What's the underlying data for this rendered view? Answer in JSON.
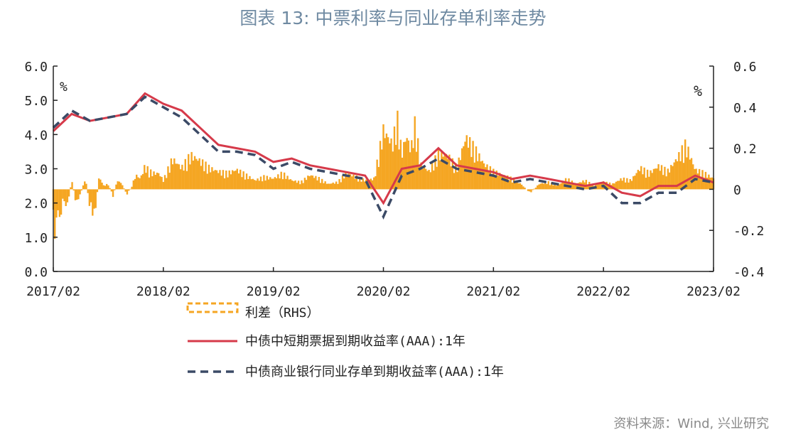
{
  "title": "图表 13: 中票利率与同业存单利率走势",
  "source": "资料来源：Wind, 兴业研究",
  "colors": {
    "spread": "#f5a623",
    "mtn": "#d63a4a",
    "ncd": "#3b4a66",
    "axis": "#222222",
    "title": "#6f8aa2"
  },
  "chart_data": {
    "type": "line",
    "left_unit": "%",
    "right_unit": "%",
    "y_left": {
      "min": 0,
      "max": 6,
      "ticks": [
        "0.0",
        "1.0",
        "2.0",
        "3.0",
        "4.0",
        "5.0",
        "6.0"
      ]
    },
    "y_right": {
      "min": -0.4,
      "max": 0.6,
      "ticks": [
        "-0.4",
        "-0.2",
        "0",
        "0.2",
        "0.4",
        "0.6"
      ]
    },
    "x_ticks": [
      "2017/02",
      "2018/02",
      "2019/02",
      "2020/02",
      "2021/02",
      "2022/02",
      "2023/02"
    ],
    "legend_position": "bottom",
    "series": [
      {
        "name": "利差（RHS）",
        "type": "bar",
        "axis": "right",
        "x": [
          0,
          0.25,
          0.5,
          0.75,
          1,
          1.5,
          2,
          2.5,
          3,
          3.5,
          4,
          4.5,
          5,
          5.5,
          6,
          6.5,
          7,
          7.5,
          8,
          8.5,
          9,
          9.5,
          10,
          10.5,
          11,
          11.5,
          12,
          13,
          14,
          15,
          16,
          17,
          18,
          19,
          20,
          21,
          22,
          23,
          24,
          25,
          26,
          27,
          28,
          29,
          30,
          31,
          32,
          33,
          34,
          35,
          36,
          37,
          37.5,
          38,
          38.5,
          39,
          39.5,
          40,
          41,
          42,
          43,
          44,
          45,
          46,
          47,
          48,
          49,
          50,
          51,
          52,
          53,
          54,
          55,
          56,
          57,
          58,
          59,
          60,
          61,
          62,
          63,
          64,
          65,
          66,
          67,
          68,
          69,
          70,
          71,
          72
        ],
        "values": [
          -0.18,
          -0.27,
          -0.1,
          -0.2,
          -0.05,
          -0.1,
          0.05,
          -0.08,
          -0.02,
          0.06,
          -0.1,
          -0.15,
          0.07,
          0.02,
          0.03,
          -0.04,
          0.05,
          0.03,
          -0.03,
          0.01,
          0.08,
          0.06,
          0.13,
          0.1,
          0.09,
          0.09,
          0.05,
          0.17,
          0.12,
          0.19,
          0.16,
          0.12,
          0.1,
          0.09,
          0.11,
          0.08,
          0.05,
          0.07,
          0.06,
          0.09,
          0.05,
          0.04,
          0.08,
          0.06,
          0.03,
          0.04,
          0.09,
          0.07,
          0.05,
          0.06,
          0.33,
          0.25,
          0.4,
          0.2,
          0.3,
          0.22,
          0.38,
          0.14,
          0.1,
          0.2,
          0.19,
          0.12,
          0.29,
          0.22,
          0.14,
          0.1,
          0.08,
          0.06,
          0.03,
          -0.02,
          0.03,
          0.04,
          0.02,
          0.06,
          0.03,
          0.05,
          0.02,
          0.04,
          0.03,
          0.06,
          0.05,
          0.12,
          0.09,
          0.13,
          0.1,
          0.17,
          0.25,
          0.11,
          0.09,
          0.06
        ]
      },
      {
        "name": "中债中短期票据到期收益率(AAA):1年",
        "type": "line",
        "axis": "left",
        "x": [
          0,
          2,
          4,
          6,
          8,
          10,
          12,
          14,
          16,
          18,
          20,
          22,
          24,
          26,
          28,
          30,
          32,
          34,
          36,
          38,
          40,
          42,
          44,
          46,
          48,
          50,
          52,
          54,
          56,
          58,
          60,
          62,
          64,
          66,
          68,
          70,
          72
        ],
        "values": [
          4.1,
          4.6,
          4.4,
          4.5,
          4.6,
          5.2,
          4.9,
          4.7,
          4.2,
          3.7,
          3.6,
          3.5,
          3.2,
          3.3,
          3.1,
          3.0,
          2.9,
          2.8,
          2.0,
          3.0,
          3.1,
          3.6,
          3.1,
          3.0,
          2.9,
          2.7,
          2.8,
          2.7,
          2.6,
          2.5,
          2.6,
          2.3,
          2.2,
          2.5,
          2.5,
          2.8,
          2.6
        ]
      },
      {
        "name": "中债商业银行同业存单到期收益率(AAA):1年",
        "type": "line",
        "axis": "left",
        "x": [
          0,
          2,
          4,
          6,
          8,
          10,
          12,
          14,
          16,
          18,
          20,
          22,
          24,
          26,
          28,
          30,
          32,
          34,
          36,
          38,
          40,
          42,
          44,
          46,
          48,
          50,
          52,
          54,
          56,
          58,
          60,
          62,
          64,
          66,
          68,
          70,
          72
        ],
        "values": [
          4.2,
          4.7,
          4.4,
          4.5,
          4.6,
          5.1,
          4.8,
          4.5,
          4.0,
          3.5,
          3.5,
          3.4,
          3.0,
          3.2,
          3.0,
          2.9,
          2.8,
          2.7,
          1.6,
          2.8,
          3.0,
          3.3,
          3.0,
          2.9,
          2.8,
          2.6,
          2.7,
          2.6,
          2.5,
          2.4,
          2.5,
          2.0,
          2.0,
          2.3,
          2.3,
          2.7,
          2.6
        ]
      }
    ]
  }
}
